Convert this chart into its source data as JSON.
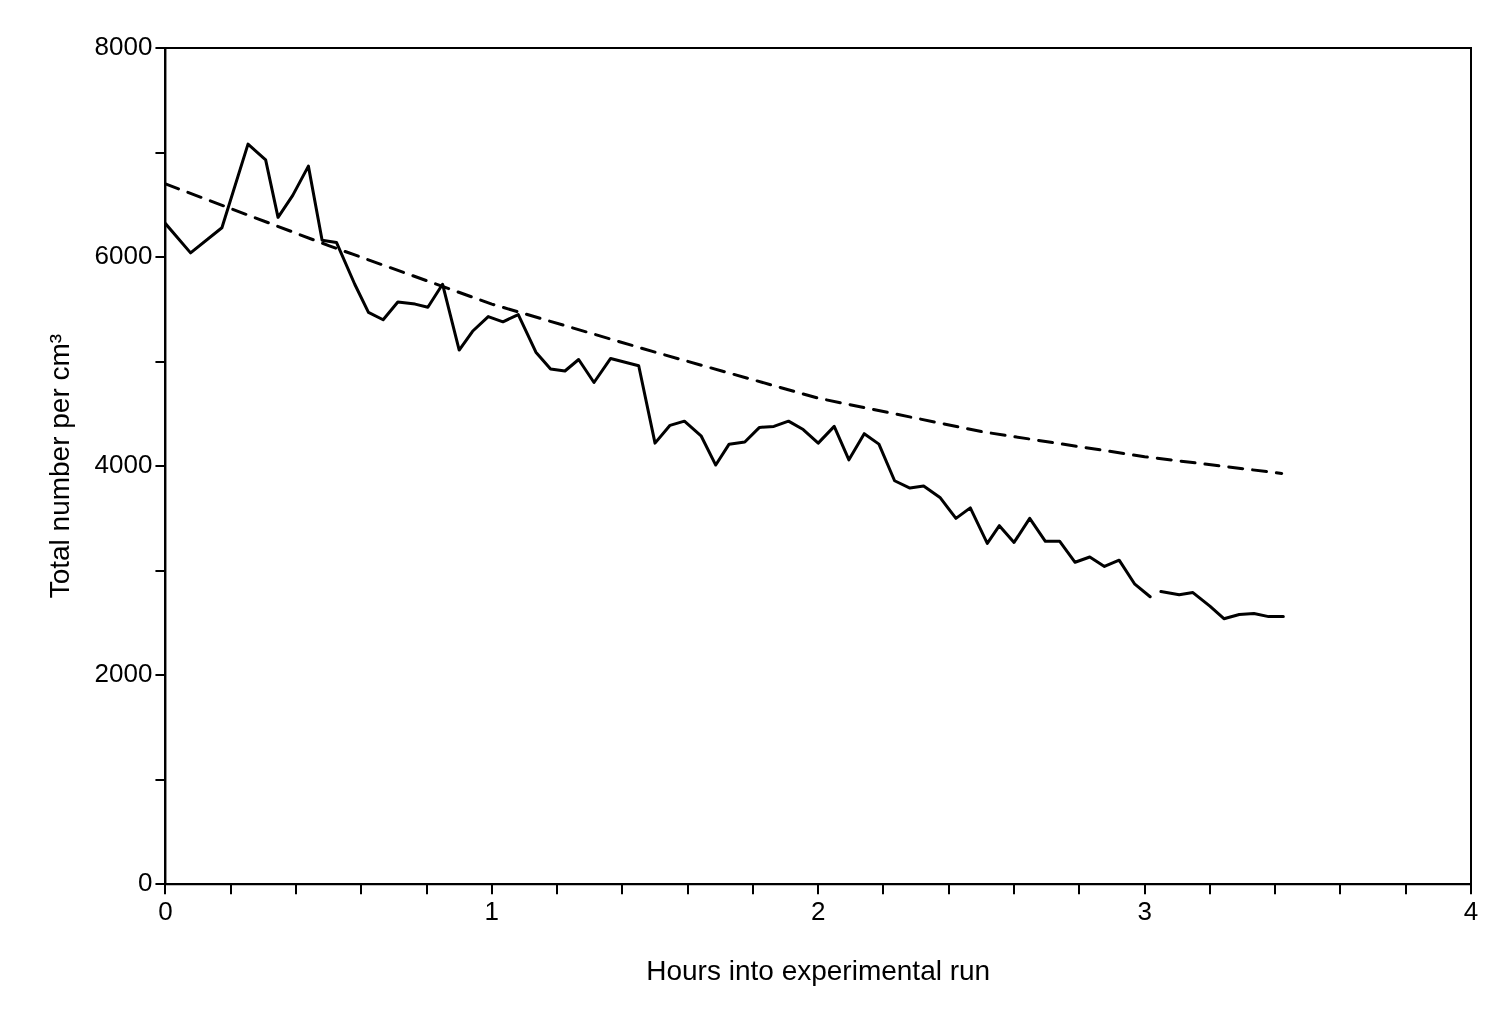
{
  "chart_data": {
    "type": "line",
    "xlabel": "Hours into experimental run",
    "ylabel": "Total number per cm³",
    "xlim": [
      0,
      4
    ],
    "ylim": [
      0,
      8000
    ],
    "xticks": [
      0,
      {
        "value": 0.2,
        "label": null
      },
      {
        "value": 0.4,
        "label": null
      },
      {
        "value": 0.6,
        "label": null
      },
      {
        "value": 0.8,
        "label": null
      },
      1,
      {
        "value": 1.2,
        "label": null
      },
      {
        "value": 1.4,
        "label": null
      },
      {
        "value": 1.6,
        "label": null
      },
      {
        "value": 1.8,
        "label": null
      },
      2,
      {
        "value": 2.2,
        "label": null
      },
      {
        "value": 2.4,
        "label": null
      },
      {
        "value": 2.6,
        "label": null
      },
      {
        "value": 2.8,
        "label": null
      },
      3,
      {
        "value": 3.2,
        "label": null
      },
      {
        "value": 3.4,
        "label": null
      },
      {
        "value": 3.6,
        "label": null
      },
      {
        "value": 3.8,
        "label": null
      },
      4
    ],
    "yticks": [
      0,
      {
        "value": 1000,
        "label": null
      },
      2000,
      {
        "value": 3000,
        "label": null
      },
      4000,
      {
        "value": 5000,
        "label": null
      },
      6000,
      {
        "value": 7000,
        "label": null
      },
      8000
    ],
    "grid": false,
    "legend": false,
    "marker": "none",
    "series": [
      {
        "color": "#000000",
        "line_style": "solid",
        "x": [
          0,
          0.077,
          0.173,
          0.253,
          0.307,
          0.345,
          0.39,
          0.438,
          0.48,
          0.524,
          0.58,
          0.622,
          0.667,
          0.712,
          0.765,
          0.804,
          0.849,
          0.9,
          0.941,
          0.989,
          1.034,
          1.081,
          1.135,
          1.18,
          1.224,
          1.266,
          1.313,
          1.364,
          1.45,
          1.5,
          1.546,
          1.59,
          1.641,
          1.686,
          1.727,
          1.775,
          1.82,
          1.864,
          1.909,
          1.954,
          2.0,
          2.049,
          2.094,
          2.141,
          2.186,
          2.234,
          2.281,
          2.323,
          2.373,
          2.422,
          2.466,
          2.518,
          2.555,
          2.6,
          2.648,
          2.696,
          2.74,
          2.787,
          2.832,
          2.877,
          2.922,
          2.97,
          3.017,
          3.03,
          3.05,
          3.106,
          3.148,
          3.2,
          3.243,
          3.29,
          3.335,
          3.38,
          3.425
        ],
        "values": [
          6320,
          6040,
          6280,
          7080,
          6930,
          6380,
          6590,
          6870,
          6160,
          6140,
          5740,
          5470,
          5400,
          5570,
          5550,
          5520,
          5740,
          5110,
          5290,
          5430,
          5380,
          5450,
          5090,
          4930,
          4910,
          5020,
          4800,
          5030,
          4960,
          4220,
          4390,
          4430,
          4290,
          4010,
          4210,
          4230,
          4370,
          4380,
          4430,
          4350,
          4220,
          4380,
          4060,
          4310,
          4210,
          3860,
          3790,
          3810,
          3700,
          3500,
          3600,
          3260,
          3430,
          3270,
          3500,
          3280,
          3280,
          3080,
          3130,
          3040,
          3100,
          2870,
          2750,
          null,
          2800,
          2770,
          2790,
          2660,
          2540,
          2580,
          2590,
          2560,
          2560
        ]
      },
      {
        "color": "#000000",
        "line_style": "dashed",
        "x": [
          0,
          0.5,
          1,
          1.5,
          2,
          2.5,
          3,
          3.42
        ],
        "values": [
          6700,
          6110,
          5550,
          5090,
          4650,
          4330,
          4090,
          3930
        ]
      }
    ]
  }
}
